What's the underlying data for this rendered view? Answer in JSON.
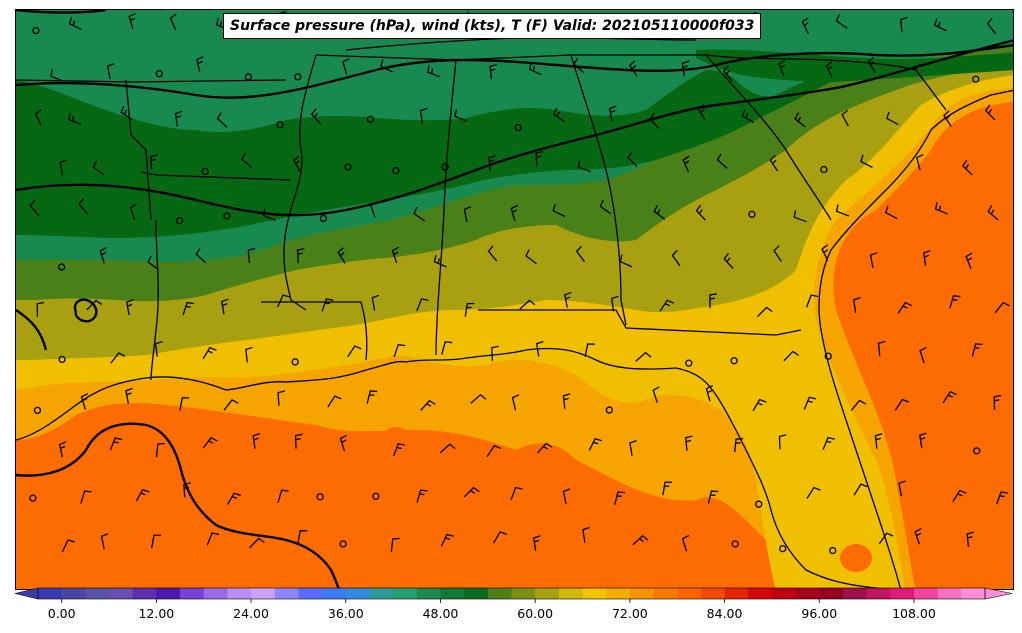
{
  "map": {
    "title": "Surface pressure (hPa), wind (kts), T (F) Valid: 202105110000f033",
    "palette": [
      "#3a3bb0",
      "#4a46a8",
      "#5a52a6",
      "#6a4fb0",
      "#5b2fb0",
      "#4c18b0",
      "#7a40d8",
      "#9a6ae8",
      "#b690f5",
      "#c9a4ff",
      "#8c86ff",
      "#5a6cff",
      "#3c7cf0",
      "#2f8ae0",
      "#2f9a9a",
      "#24a070",
      "#1e8a50",
      "#137838",
      "#0a6a20",
      "#4e8018",
      "#7a9010",
      "#a8a010",
      "#d2b808",
      "#f2c400",
      "#f5ad00",
      "#f79500",
      "#f97a00",
      "#fb6400",
      "#f44a00",
      "#e42400",
      "#d40808",
      "#c00010",
      "#a80018",
      "#980020",
      "#a0104a",
      "#c41660",
      "#e01a78",
      "#f044a0",
      "#f870c0",
      "#ff90d8"
    ],
    "bands": {
      "deep_green": "#066812",
      "green": "#188a50",
      "olive_green": "#4a8018",
      "olive": "#a8a010",
      "yellow": "#f0c000",
      "light_orange": "#f5a400",
      "orange": "#fc6c00"
    }
  },
  "colorbar": {
    "tick_labels": [
      "0.00",
      "12.00",
      "24.00",
      "36.00",
      "48.00",
      "60.00",
      "72.00",
      "84.00",
      "96.00",
      "108.00"
    ],
    "tick_values": [
      0,
      12,
      24,
      36,
      48,
      60,
      72,
      84,
      96,
      108
    ],
    "min": -3,
    "max": 117,
    "step": 3
  }
}
